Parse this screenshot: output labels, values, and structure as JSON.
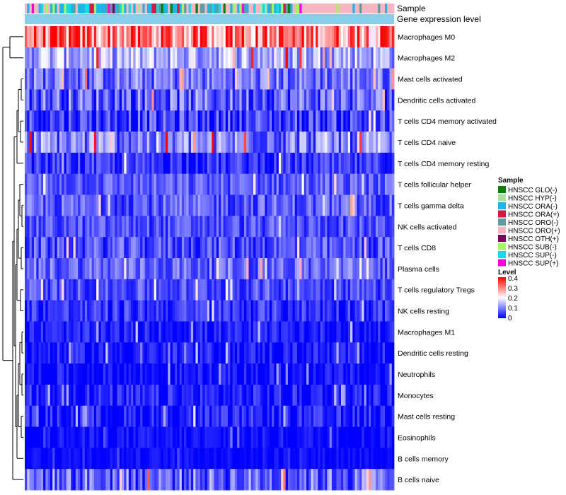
{
  "chart_data": {
    "type": "heatmap",
    "title": "",
    "track_labels": [
      "Sample",
      "Gene expression level"
    ],
    "rows": [
      {
        "name": "Macrophages M0",
        "mean": 0.3,
        "spread": 0.12
      },
      {
        "name": "Macrophages M2",
        "mean": 0.14,
        "spread": 0.08
      },
      {
        "name": "Mast cells activated",
        "mean": 0.09,
        "spread": 0.07
      },
      {
        "name": "Dendritic cells activated",
        "mean": 0.08,
        "spread": 0.08
      },
      {
        "name": "T cells CD4 memory activated",
        "mean": 0.05,
        "spread": 0.07
      },
      {
        "name": "T cells CD4 naive",
        "mean": 0.1,
        "spread": 0.09
      },
      {
        "name": "T cells CD4 memory resting",
        "mean": 0.04,
        "spread": 0.05
      },
      {
        "name": "T cells follicular helper",
        "mean": 0.07,
        "spread": 0.05
      },
      {
        "name": "T cells gamma delta",
        "mean": 0.07,
        "spread": 0.06
      },
      {
        "name": "NK cells activated",
        "mean": 0.06,
        "spread": 0.05
      },
      {
        "name": "T cells CD8",
        "mean": 0.06,
        "spread": 0.06
      },
      {
        "name": "Plasma cells",
        "mean": 0.08,
        "spread": 0.06
      },
      {
        "name": "T cells regulatory  Tregs",
        "mean": 0.06,
        "spread": 0.05
      },
      {
        "name": "NK cells resting",
        "mean": 0.04,
        "spread": 0.05
      },
      {
        "name": "Macrophages M1",
        "mean": 0.02,
        "spread": 0.04
      },
      {
        "name": "Dendritic cells resting",
        "mean": 0.02,
        "spread": 0.04
      },
      {
        "name": "Neutrophils",
        "mean": 0.01,
        "spread": 0.04
      },
      {
        "name": "Monocytes",
        "mean": 0.02,
        "spread": 0.05
      },
      {
        "name": "Mast cells resting",
        "mean": 0.02,
        "spread": 0.05
      },
      {
        "name": "Eosinophils",
        "mean": 0.01,
        "spread": 0.03
      },
      {
        "name": "B cells memory",
        "mean": 0.01,
        "spread": 0.02
      },
      {
        "name": "B cells naive",
        "mean": 0.08,
        "spread": 0.08
      }
    ],
    "n_samples": 160,
    "value_range": [
      0,
      0.4
    ],
    "sample_groups": [
      {
        "name": "HNSCC GLO(-)",
        "color": "#0a7d0a"
      },
      {
        "name": "HNSCC HYP(-)",
        "color": "#a4e3a4"
      },
      {
        "name": "HNSCC ORA(-)",
        "color": "#1fb3e8"
      },
      {
        "name": "HNSCC ORA(+)",
        "color": "#d01c45"
      },
      {
        "name": "HNSCC ORO(-)",
        "color": "#5f9ea0"
      },
      {
        "name": "HNSCC ORO(+)",
        "color": "#f4b6c2"
      },
      {
        "name": "HNSCC OTH(+)",
        "color": "#800060"
      },
      {
        "name": "HNSCC SUB(-)",
        "color": "#a5f55f"
      },
      {
        "name": "HNSCC SUP(-)",
        "color": "#19d9e8"
      },
      {
        "name": "HNSCC SUP(+)",
        "color": "#ff00dd"
      }
    ],
    "sample_legend_title": "Sample",
    "level_legend_title": "Level",
    "level_ticks": [
      "0.4",
      "0.3",
      "0.2",
      "0.1",
      "0"
    ],
    "level_tick_values": [
      0.4,
      0.3,
      0.2,
      0.1,
      0
    ],
    "colorscale": [
      "#0000ff",
      "#ffffff",
      "#ff0000"
    ],
    "gene_expression_track_color": "#87ceeb"
  }
}
